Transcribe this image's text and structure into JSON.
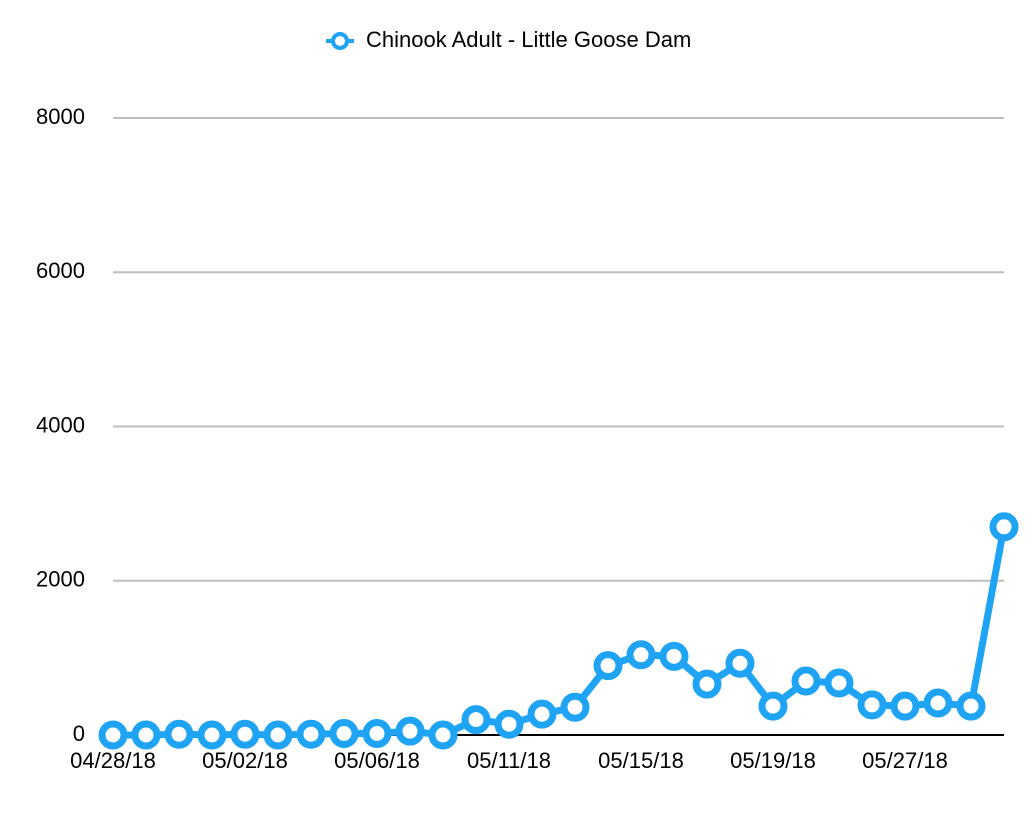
{
  "chart_data": {
    "type": "line",
    "categories": [
      "04/28/18",
      null,
      null,
      null,
      "05/02/18",
      null,
      null,
      null,
      "05/06/18",
      null,
      null,
      null,
      "05/11/18",
      null,
      null,
      null,
      "05/15/18",
      null,
      null,
      null,
      "05/19/18",
      null,
      null,
      null,
      "05/27/18",
      null,
      null,
      null
    ],
    "series": [
      {
        "name": "Chinook Adult - Little Goose Dam",
        "color": "#1fa3f5",
        "values": [
          0,
          0,
          10,
          0,
          10,
          0,
          10,
          20,
          20,
          50,
          0,
          200,
          140,
          270,
          360,
          900,
          1040,
          1020,
          660,
          930,
          375,
          700,
          675,
          390,
          375,
          415,
          375,
          2700
        ]
      }
    ],
    "ylim": [
      0,
      8000
    ],
    "yticks": [
      0,
      2000,
      4000,
      6000,
      8000
    ],
    "grid": true,
    "legend": "top"
  }
}
